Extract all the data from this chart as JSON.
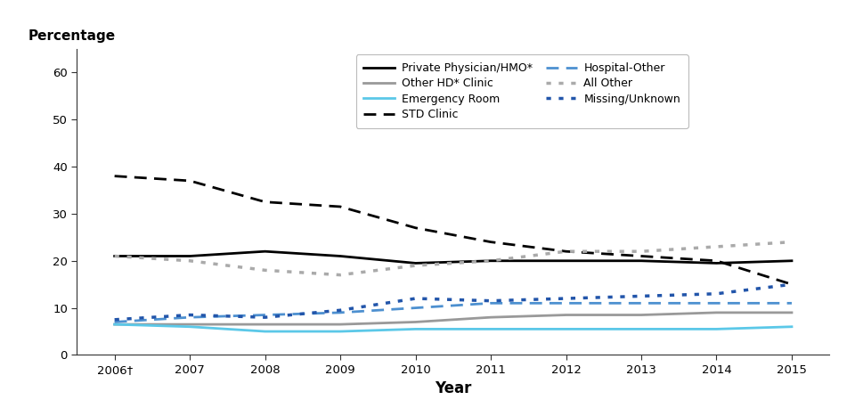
{
  "years": [
    2006,
    2007,
    2008,
    2009,
    2010,
    2011,
    2012,
    2013,
    2014,
    2015
  ],
  "series": {
    "Private Physician/HMO*": {
      "values": [
        21,
        21,
        22,
        21,
        19.5,
        20,
        20,
        20,
        19.5,
        20
      ],
      "color": "#000000",
      "linestyle": "solid",
      "linewidth": 2.0
    },
    "Other HD* Clinic": {
      "values": [
        6.5,
        6.5,
        6.5,
        6.5,
        7,
        8,
        8.5,
        8.5,
        9,
        9
      ],
      "color": "#999999",
      "linestyle": "solid",
      "linewidth": 2.0
    },
    "Emergency Room": {
      "values": [
        6.5,
        6,
        5,
        5,
        5.5,
        5.5,
        5.5,
        5.5,
        5.5,
        6
      ],
      "color": "#5bc8e8",
      "linestyle": "solid",
      "linewidth": 2.0
    },
    "STD Clinic": {
      "values": [
        38,
        37,
        32.5,
        31.5,
        27,
        24,
        22,
        21,
        20,
        15
      ],
      "color": "#000000",
      "linestyle": "dashed",
      "linewidth": 2.0
    },
    "Hospital-Other": {
      "values": [
        7,
        8,
        8.5,
        9,
        10,
        11,
        11,
        11,
        11,
        11
      ],
      "color": "#4d90d0",
      "linestyle": "dashed",
      "linewidth": 2.0
    },
    "All Other": {
      "values": [
        21,
        20,
        18,
        17,
        19,
        20,
        22,
        22,
        23,
        24
      ],
      "color": "#aaaaaa",
      "linestyle": "dotted",
      "linewidth": 2.5
    },
    "Missing/Unknown": {
      "values": [
        7.5,
        8.5,
        8,
        9.5,
        12,
        11.5,
        12,
        12.5,
        13,
        15
      ],
      "color": "#2255aa",
      "linestyle": "dotted",
      "linewidth": 2.5
    }
  },
  "xlabel": "Year",
  "ylabel": "Percentage",
  "ylim": [
    0,
    65
  ],
  "yticks": [
    0,
    10,
    20,
    30,
    40,
    50,
    60
  ],
  "xlim": [
    2005.5,
    2015.5
  ],
  "background_color": "#ffffff",
  "legend_col1": [
    "Private Physician/HMO*",
    "Other HD* Clinic",
    "Emergency Room",
    "STD Clinic"
  ],
  "legend_col2": [
    "Hospital-Other",
    "All Other",
    "Missing/Unknown"
  ]
}
